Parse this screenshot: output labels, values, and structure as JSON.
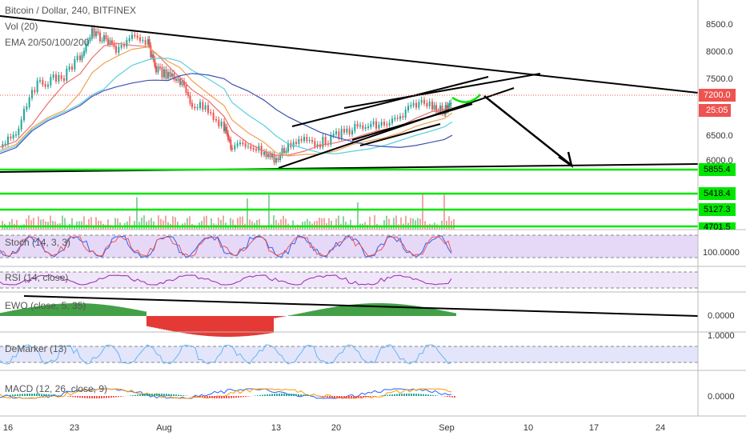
{
  "header": {
    "title": "Bitcoin / Dollar, 240, BITFINEX",
    "volume": "Vol (20)",
    "ema": "EMA 20/50/100/200"
  },
  "price_axis": [
    "8500.0",
    "8000.0",
    "7500.0",
    "6500.0",
    "6000.0"
  ],
  "badges": {
    "last_price": "7200.0",
    "countdown": "25:05",
    "level_1": "5855.4",
    "level_2": "5418.4",
    "level_3": "5127.3",
    "level_4": "4701.5"
  },
  "indicators": {
    "stoch": "Stoch (14, 3, 3)",
    "rsi": "RSI (14, close)",
    "ewo": "EWO (close, 5, 35)",
    "demarker": "DeMarker (13)",
    "macd": "MACD (12, 26, close, 9)"
  },
  "indicator_axis": {
    "stoch": "100.0000",
    "ewo": "0.0000",
    "demarker": "1.0000",
    "macd": "0.0000"
  },
  "time_axis": [
    "16",
    "23",
    "Aug",
    "13",
    "20",
    "Sep",
    "10",
    "17",
    "24"
  ]
}
